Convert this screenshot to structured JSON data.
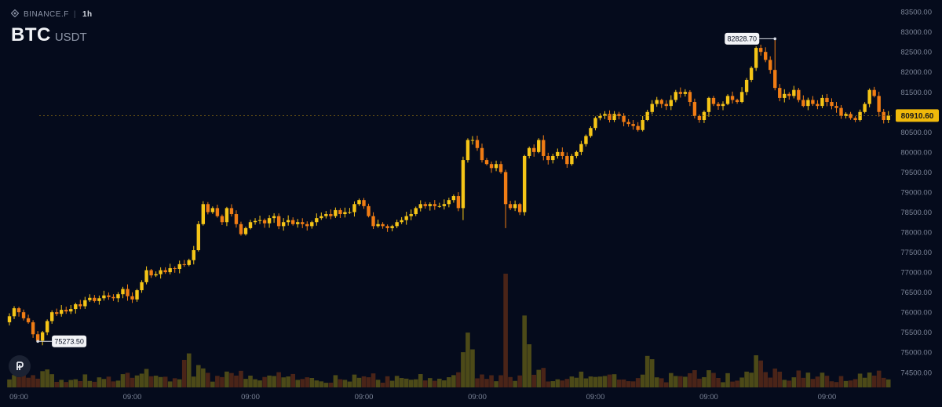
{
  "header": {
    "exchange": "BINANCE.F",
    "interval": "1h",
    "base": "BTC",
    "quote": "USDT"
  },
  "chart_data": {
    "type": "candlestick",
    "ylim": [
      74300,
      83600
    ],
    "y_ticks": [
      "74500.00",
      "75000.00",
      "75500.00",
      "76000.00",
      "76500.00",
      "77000.00",
      "77500.00",
      "78000.00",
      "78500.00",
      "79000.00",
      "79500.00",
      "80000.00",
      "80500.00",
      "81000.00",
      "81500.00",
      "82000.00",
      "82500.00",
      "83000.00",
      "83500.00"
    ],
    "x_tick_labels": [
      "09:00",
      "09:00",
      "09:00",
      "09:00",
      "09:00",
      "09:00",
      "09:00",
      "09:00"
    ],
    "x_tick_candle_index": [
      2,
      26,
      51,
      75,
      99,
      124,
      148,
      173
    ],
    "current_price": "80910.60",
    "high_label": "82828.70",
    "low_label": "75273.50",
    "high_candle_index": 162,
    "low_candle_index": 6,
    "colors": {
      "up": "#f5c517",
      "down": "#f07c14",
      "up_volume": "#4c4a18",
      "down_volume": "#4a2418",
      "background": "#050b1c",
      "price_tag": "#f0b90b"
    },
    "closes": [
      75900,
      76100,
      76000,
      75850,
      75750,
      75450,
      75290,
      75500,
      75780,
      76000,
      75960,
      76060,
      76020,
      76080,
      76200,
      76150,
      76300,
      76360,
      76280,
      76350,
      76420,
      76380,
      76350,
      76450,
      76580,
      76400,
      76320,
      76550,
      76750,
      77050,
      76920,
      76950,
      77050,
      77000,
      77100,
      77080,
      77200,
      77180,
      77300,
      77550,
      78200,
      78700,
      78500,
      78600,
      78400,
      78250,
      78600,
      78450,
      78200,
      77950,
      78100,
      78250,
      78280,
      78300,
      78220,
      78350,
      78400,
      78150,
      78250,
      78300,
      78200,
      78250,
      78200,
      78150,
      78250,
      78350,
      78400,
      78450,
      78400,
      78550,
      78450,
      78500,
      78500,
      78700,
      78800,
      78650,
      78400,
      78150,
      78200,
      78150,
      78100,
      78150,
      78250,
      78300,
      78400,
      78450,
      78600,
      78700,
      78650,
      78700,
      78650,
      78650,
      78700,
      78800,
      78900,
      78600,
      79800,
      80300,
      80300,
      80100,
      79800,
      79700,
      79600,
      79700,
      79500,
      78700,
      78600,
      78700,
      78500,
      79900,
      80100,
      80000,
      80300,
      79900,
      79800,
      79900,
      80000,
      79900,
      79700,
      79900,
      80000,
      80200,
      80400,
      80600,
      80850,
      80900,
      80950,
      80800,
      80950,
      80900,
      80750,
      80700,
      80650,
      80550,
      80800,
      81000,
      81200,
      81300,
      81200,
      81150,
      81300,
      81500,
      81450,
      81500,
      81250,
      80900,
      80800,
      81000,
      81350,
      81200,
      81150,
      81200,
      81400,
      81300,
      81250,
      81500,
      81800,
      82100,
      82600,
      82500,
      82300,
      82050,
      81600,
      81350,
      81450,
      81400,
      81550,
      81300,
      81150,
      81300,
      81200,
      81150,
      81350,
      81250,
      81150,
      81100,
      80900,
      80950,
      80850,
      80800,
      81000,
      81200,
      81550,
      81400,
      81000,
      80800,
      80910
    ]
  }
}
